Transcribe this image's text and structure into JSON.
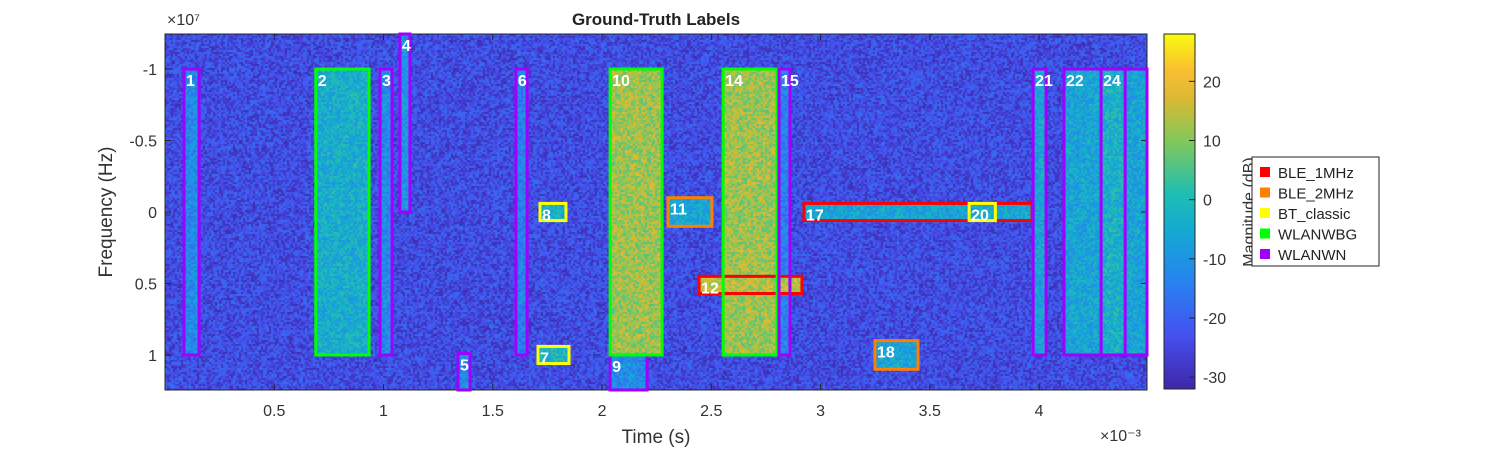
{
  "chart_data": {
    "type": "heatmap",
    "title": "Ground-Truth Labels",
    "xlabel": "Time (s)",
    "ylabel": "Frequency (Hz)",
    "x_exponent": "×10⁻³",
    "y_exponent": "×10⁷",
    "xlim": [
      0,
      4.494
    ],
    "ylim": [
      -1.245,
      1.245
    ],
    "y_reversed": true,
    "xticks": [
      0.5,
      1,
      1.5,
      2,
      2.5,
      3,
      3.5,
      4
    ],
    "xtick_labels": [
      "0.5",
      "1",
      "1.5",
      "2",
      "2.5",
      "3",
      "3.5",
      "4"
    ],
    "yticks": [
      -1,
      -0.5,
      0,
      0.5,
      1
    ],
    "ytick_labels": [
      "-1",
      "-0.5",
      "0",
      "0.5",
      "1"
    ],
    "colorbar": {
      "label": "Magnitude (dB)",
      "range": [
        -32,
        28
      ],
      "ticks": [
        20,
        10,
        0,
        -10,
        -20,
        -30
      ],
      "tick_labels": [
        "20",
        "10",
        "0",
        "-10",
        "-20",
        "-30"
      ],
      "colormap": "parula"
    },
    "legend": {
      "placement": "right",
      "entries": [
        {
          "name": "BLE_1MHz",
          "color": "#ff0000"
        },
        {
          "name": "BLE_2MHz",
          "color": "#ff8000"
        },
        {
          "name": "BT_classic",
          "color": "#ffff00"
        },
        {
          "name": "WLANWBG",
          "color": "#00ff00"
        },
        {
          "name": "WLANWN",
          "color": "#a000ff"
        }
      ]
    },
    "boxes": [
      {
        "label": "1",
        "class": "WLANWN",
        "t": [
          0.087,
          0.156
        ],
        "f": [
          -1,
          1
        ],
        "mag": -12
      },
      {
        "label": "2",
        "class": "WLANWBG",
        "t": [
          0.69,
          0.934
        ],
        "f": [
          -1,
          1
        ],
        "mag": -4
      },
      {
        "label": "3",
        "class": "WLANWN",
        "t": [
          0.984,
          1.039
        ],
        "f": [
          -1,
          1
        ],
        "mag": -12
      },
      {
        "label": "4",
        "class": "WLANWN",
        "t": [
          1.075,
          1.121
        ],
        "f": [
          -1.245,
          0
        ],
        "mag": -10
      },
      {
        "label": "5",
        "class": "WLANWN",
        "t": [
          1.341,
          1.396
        ],
        "f": [
          0.99,
          1.245
        ],
        "mag": -12
      },
      {
        "label": "6",
        "class": "WLANWN",
        "t": [
          1.606,
          1.657
        ],
        "f": [
          -1,
          1
        ],
        "mag": -14
      },
      {
        "label": "7",
        "class": "BT_classic",
        "t": [
          1.707,
          1.849
        ],
        "f": [
          0.94,
          1.06
        ],
        "mag": -2
      },
      {
        "label": "8",
        "class": "BT_classic",
        "t": [
          1.716,
          1.835
        ],
        "f": [
          -0.06,
          0.06
        ],
        "mag": -4
      },
      {
        "label": "9",
        "class": "WLANWN",
        "t": [
          2.037,
          2.206
        ],
        "f": [
          1,
          1.245
        ],
        "mag": -12
      },
      {
        "label": "10",
        "class": "WLANWBG",
        "t": [
          2.037,
          2.275
        ],
        "f": [
          -1,
          1
        ],
        "mag": 12
      },
      {
        "label": "11",
        "class": "BLE_2MHz",
        "t": [
          2.302,
          2.503
        ],
        "f": [
          -0.1,
          0.1
        ],
        "mag": -6
      },
      {
        "label": "12",
        "class": "BLE_1MHz",
        "t": [
          2.444,
          2.915
        ],
        "f": [
          0.45,
          0.57
        ],
        "mag": 14
      },
      {
        "label": "14",
        "class": "WLANWBG",
        "t": [
          2.554,
          2.801
        ],
        "f": [
          -1,
          1
        ],
        "mag": 12
      },
      {
        "label": "15",
        "class": "WLANWN",
        "t": [
          2.81,
          2.86
        ],
        "f": [
          -1,
          1
        ],
        "mag": -14
      },
      {
        "label": "17",
        "class": "BLE_1MHz",
        "t": [
          2.924,
          3.968
        ],
        "f": [
          -0.06,
          0.06
        ],
        "mag": -6
      },
      {
        "label": "18",
        "class": "BLE_2MHz",
        "t": [
          3.249,
          3.446
        ],
        "f": [
          0.9,
          1.1
        ],
        "mag": -6
      },
      {
        "label": "20",
        "class": "BT_classic",
        "t": [
          3.68,
          3.8
        ],
        "f": [
          -0.06,
          0.06
        ],
        "mag": -4
      },
      {
        "label": "21",
        "class": "WLANWN",
        "t": [
          3.973,
          4.032
        ],
        "f": [
          -1,
          1
        ],
        "mag": -6
      },
      {
        "label": "22",
        "class": "WLANWN",
        "t": [
          4.114,
          4.5
        ],
        "f": [
          -1,
          1
        ],
        "mag": -6
      },
      {
        "label": "24",
        "class": "WLANWN",
        "t": [
          4.284,
          4.394
        ],
        "f": [
          -1,
          1
        ],
        "mag": -3
      }
    ]
  }
}
